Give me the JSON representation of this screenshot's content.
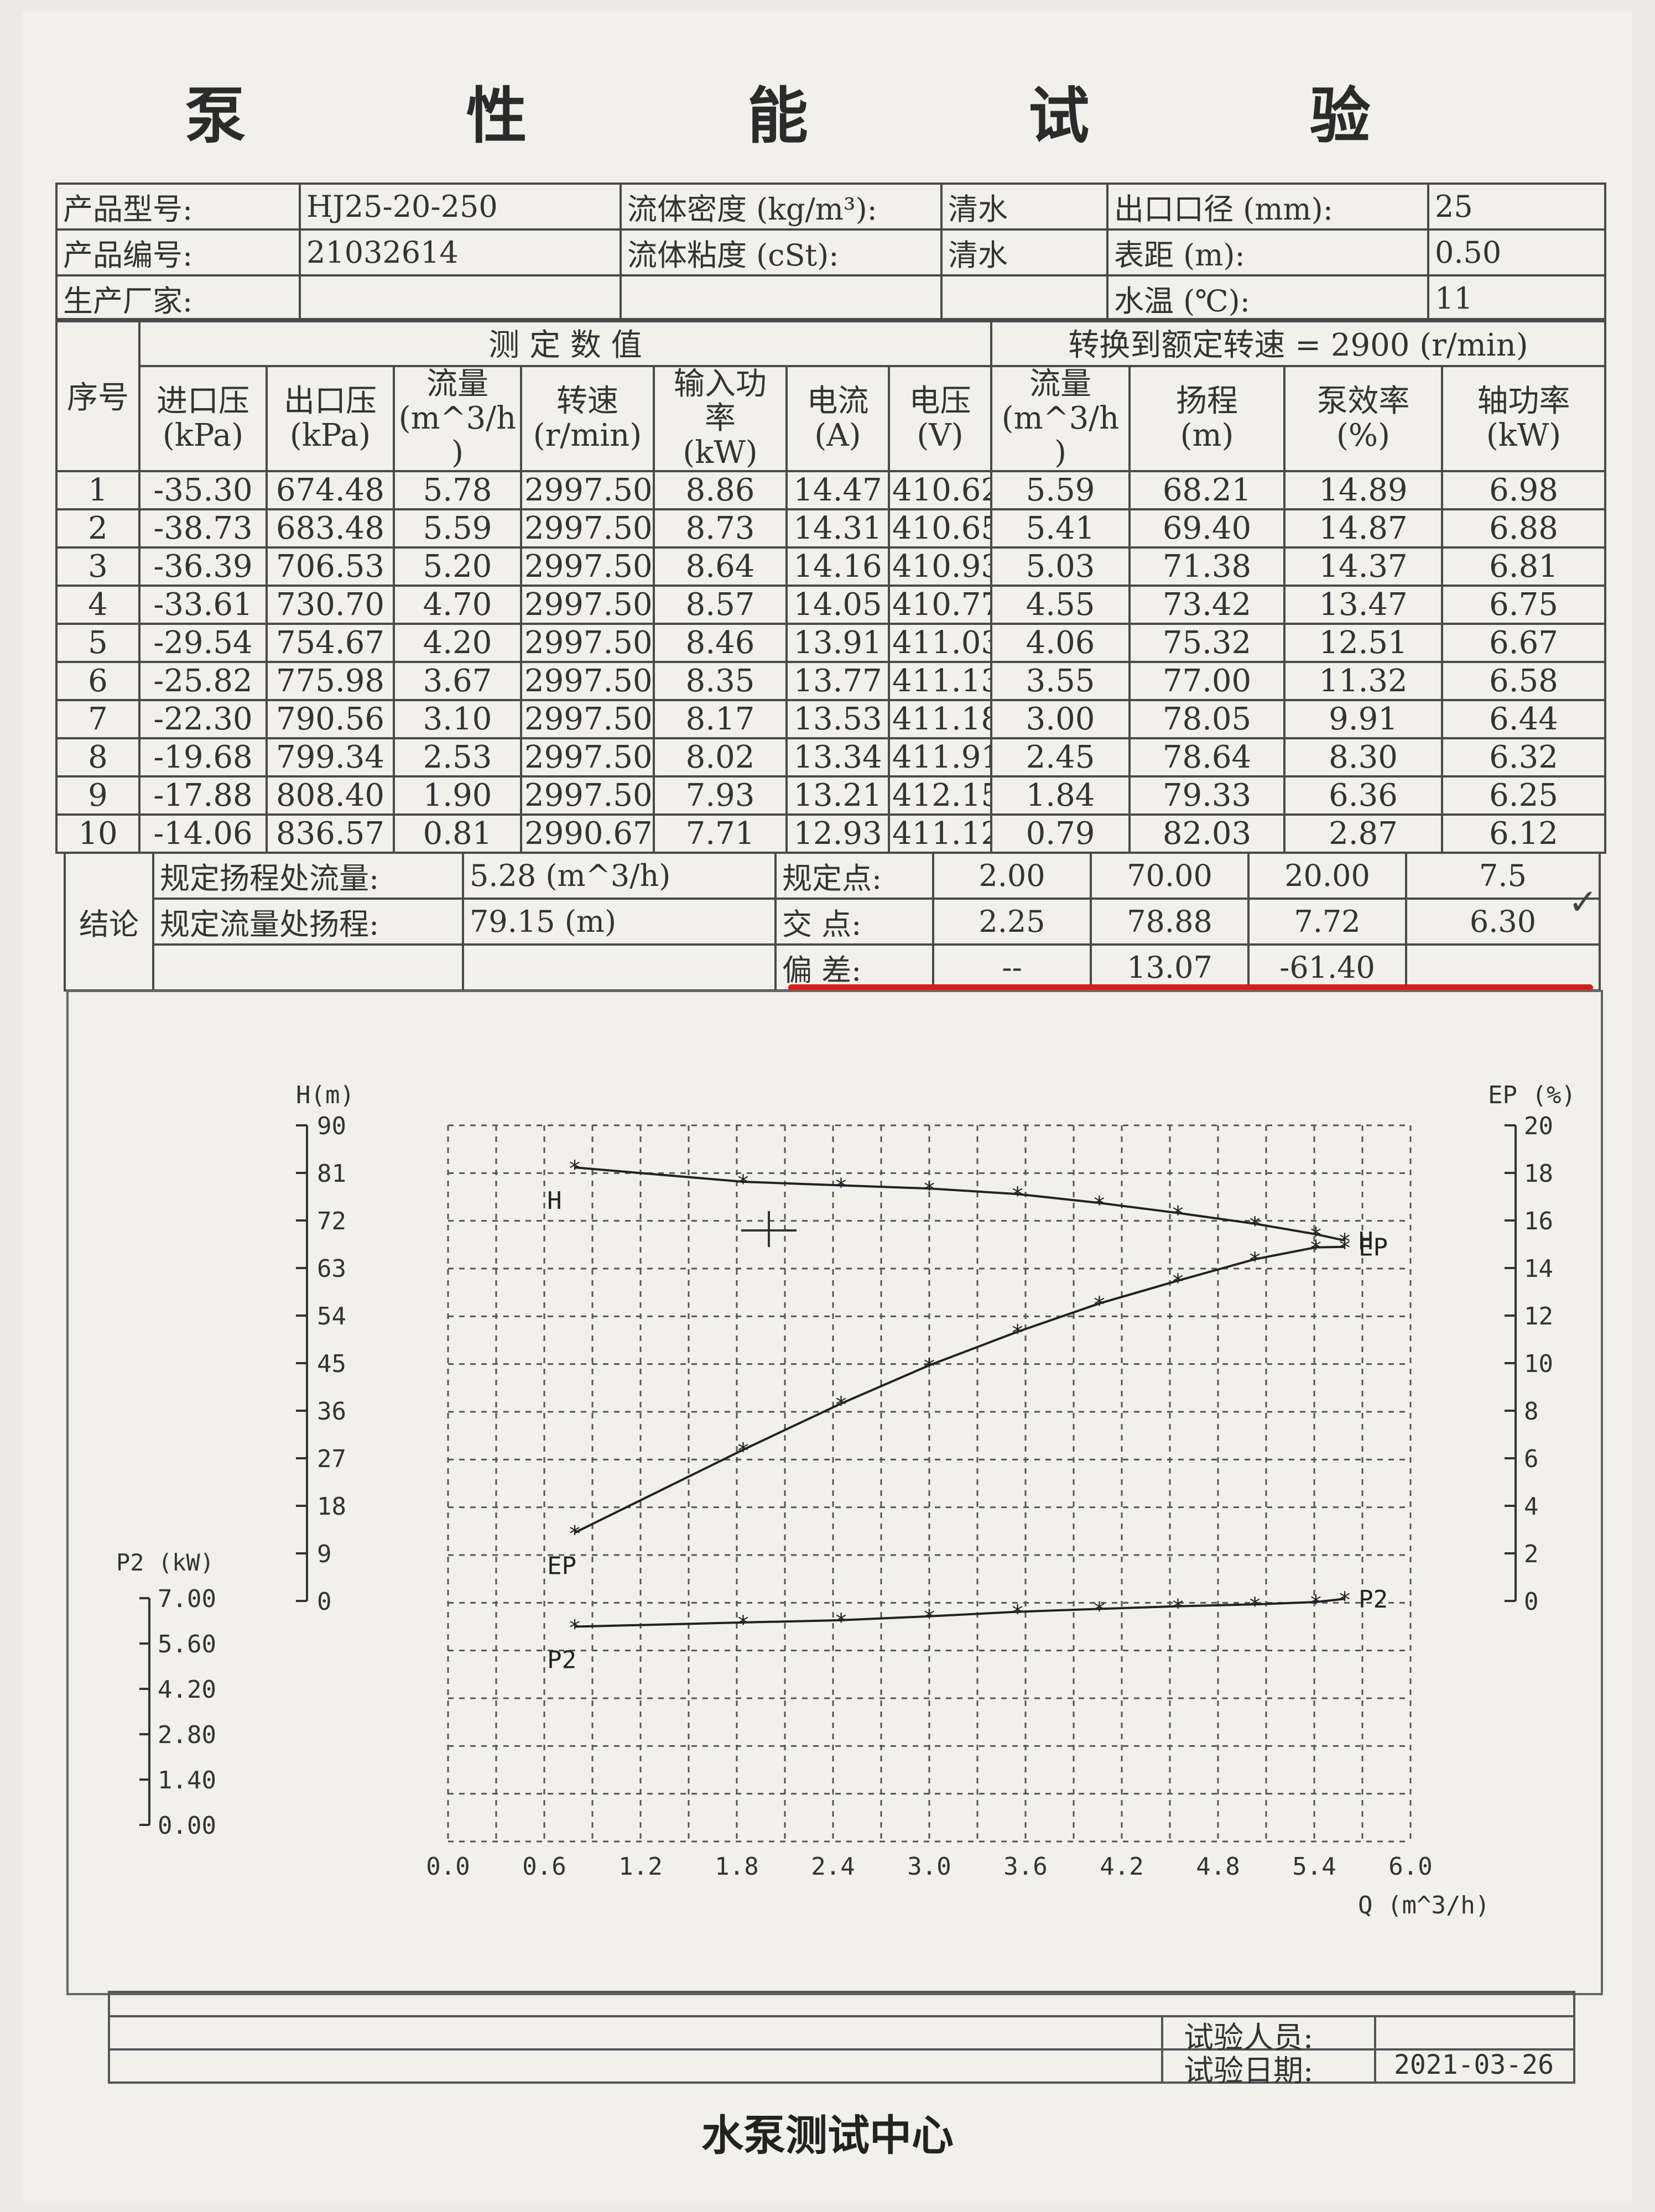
{
  "title": "泵 性 能 试 验",
  "info": {
    "model_label": "产品型号:",
    "model": "HJ25-20-250",
    "serial_label": "产品编号:",
    "serial": "21032614",
    "maker_label": "生产厂家:",
    "maker": "",
    "density_label": "流体密度 (kg/m³):",
    "density": "清水",
    "viscosity_label": "流体粘度 (cSt):",
    "viscosity": "清水",
    "outlet_label": "出口口径 (mm):",
    "outlet": "25",
    "distance_label": "表距 (m):",
    "distance": "0.50",
    "temp_label": "水温 (℃):",
    "temp": "11"
  },
  "table": {
    "group_measured": "测  定  数  值",
    "group_converted": "转换到额定转速 = 2900 (r/min)",
    "headers": [
      "序号",
      "进口压\n(kPa)",
      "出口压\n(kPa)",
      "流量\n(m^3/h\n)",
      "转速\n(r/min)",
      "输入功\n率\n(kW)",
      "电流\n(A)",
      "电压\n(V)",
      "流量\n(m^3/h\n)",
      "扬程\n(m)",
      "泵效率\n(%)",
      "轴功率\n(kW)"
    ],
    "rows": [
      [
        "1",
        "-35.30",
        "674.48",
        "5.78",
        "2997.50",
        "8.86",
        "14.47",
        "410.62",
        "5.59",
        "68.21",
        "14.89",
        "6.98"
      ],
      [
        "2",
        "-38.73",
        "683.48",
        "5.59",
        "2997.50",
        "8.73",
        "14.31",
        "410.65",
        "5.41",
        "69.40",
        "14.87",
        "6.88"
      ],
      [
        "3",
        "-36.39",
        "706.53",
        "5.20",
        "2997.50",
        "8.64",
        "14.16",
        "410.93",
        "5.03",
        "71.38",
        "14.37",
        "6.81"
      ],
      [
        "4",
        "-33.61",
        "730.70",
        "4.70",
        "2997.50",
        "8.57",
        "14.05",
        "410.77",
        "4.55",
        "73.42",
        "13.47",
        "6.75"
      ],
      [
        "5",
        "-29.54",
        "754.67",
        "4.20",
        "2997.50",
        "8.46",
        "13.91",
        "411.03",
        "4.06",
        "75.32",
        "12.51",
        "6.67"
      ],
      [
        "6",
        "-25.82",
        "775.98",
        "3.67",
        "2997.50",
        "8.35",
        "13.77",
        "411.13",
        "3.55",
        "77.00",
        "11.32",
        "6.58"
      ],
      [
        "7",
        "-22.30",
        "790.56",
        "3.10",
        "2997.50",
        "8.17",
        "13.53",
        "411.18",
        "3.00",
        "78.05",
        "9.91",
        "6.44"
      ],
      [
        "8",
        "-19.68",
        "799.34",
        "2.53",
        "2997.50",
        "8.02",
        "13.34",
        "411.91",
        "2.45",
        "78.64",
        "8.30",
        "6.32"
      ],
      [
        "9",
        "-17.88",
        "808.40",
        "1.90",
        "2997.50",
        "7.93",
        "13.21",
        "412.15",
        "1.84",
        "79.33",
        "6.36",
        "6.25"
      ],
      [
        "10",
        "-14.06",
        "836.57",
        "0.81",
        "2990.67",
        "7.71",
        "12.93",
        "411.12",
        "0.79",
        "82.03",
        "2.87",
        "6.12"
      ]
    ]
  },
  "conclusion": {
    "label": "结论",
    "flow_at_head_label": "规定扬程处流量:",
    "flow_at_head": "5.28 (m^3/h)",
    "head_at_flow_label": "规定流量处扬程:",
    "head_at_flow": "79.15 (m)",
    "spec_label": "规定点:",
    "spec": [
      "2.00",
      "70.00",
      "20.00",
      "7.5"
    ],
    "cross_label": "交  点:",
    "cross": [
      "2.25",
      "78.88",
      "7.72",
      "6.30"
    ],
    "dev_label": "偏  差:",
    "dev": [
      "--",
      "13.07",
      "-61.40",
      ""
    ]
  },
  "chart_data": {
    "type": "line",
    "x_label": "Q (m^3/h)",
    "x_ticks": [
      "0.0",
      "0.6",
      "1.2",
      "1.8",
      "2.4",
      "3.0",
      "3.6",
      "4.2",
      "4.8",
      "5.4",
      "6.0"
    ],
    "xlim": [
      0,
      6
    ],
    "axes": {
      "H": {
        "label": "H(m)",
        "ticks": [
          "90",
          "81",
          "72",
          "63",
          "54",
          "45",
          "36",
          "27",
          "18",
          "9",
          "0"
        ],
        "ylim": [
          0,
          90
        ]
      },
      "EP": {
        "label": "EP (%)",
        "ticks": [
          "20",
          "18",
          "16",
          "14",
          "12",
          "10",
          "8",
          "6",
          "4",
          "2",
          "0"
        ],
        "ylim": [
          0,
          20
        ]
      },
      "P2": {
        "label": "P2 (kW)",
        "ticks": [
          "7.00",
          "5.60",
          "4.20",
          "2.80",
          "1.40",
          "0.00"
        ],
        "ylim": [
          0,
          7
        ]
      }
    },
    "series": [
      {
        "name": "H",
        "axis": "H",
        "x": [
          0.79,
          1.84,
          2.45,
          3.0,
          3.55,
          4.06,
          4.55,
          5.03,
          5.41,
          5.59
        ],
        "values": [
          82.03,
          79.33,
          78.64,
          78.05,
          77.0,
          75.32,
          73.42,
          71.38,
          69.4,
          68.21
        ]
      },
      {
        "name": "EP",
        "axis": "EP",
        "x": [
          0.79,
          1.84,
          2.45,
          3.0,
          3.55,
          4.06,
          4.55,
          5.03,
          5.41,
          5.59
        ],
        "values": [
          2.87,
          6.36,
          8.3,
          9.91,
          11.32,
          12.51,
          13.47,
          14.37,
          14.87,
          14.89
        ]
      },
      {
        "name": "P2",
        "axis": "P2",
        "x": [
          0.79,
          1.84,
          2.45,
          3.0,
          3.55,
          4.06,
          4.55,
          5.03,
          5.41,
          5.59
        ],
        "values": [
          6.12,
          6.25,
          6.32,
          6.44,
          6.58,
          6.67,
          6.75,
          6.81,
          6.88,
          6.98
        ]
      }
    ],
    "grid": true
  },
  "footer": {
    "tester_label": "试验人员:",
    "tester": "",
    "date_label": "试验日期:",
    "date": "2021-03-26",
    "center_name": "水泵测试中心"
  },
  "colors": {
    "ink": "#2a2a2a",
    "paper": "#f1f0ea",
    "red_mark": "#e41818"
  }
}
